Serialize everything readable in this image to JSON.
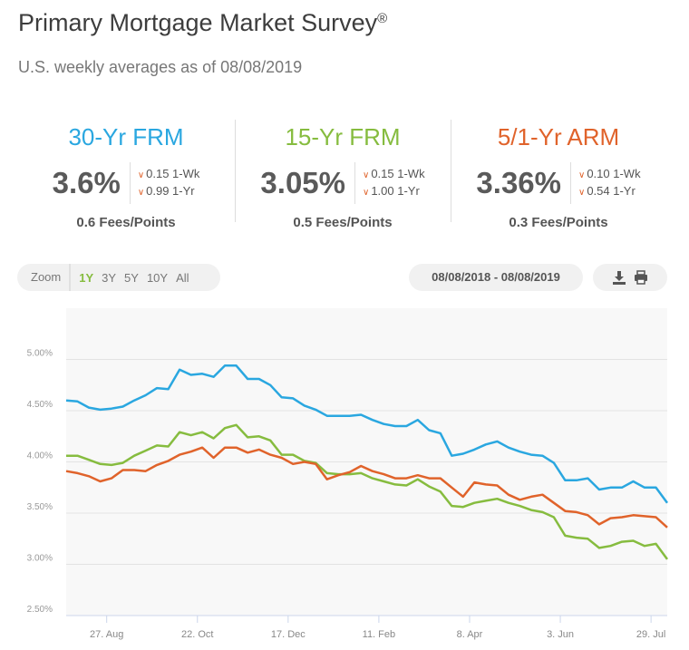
{
  "header": {
    "title": "Primary Mortgage Market Survey",
    "title_mark": "®",
    "subtitle": "U.S. weekly averages as of 08/08/2019"
  },
  "rates": [
    {
      "name": "30-Yr FRM",
      "rate": "3.6%",
      "wk": "0.15 1-Wk",
      "yr": "0.99 1-Yr",
      "fees": "0.6 Fees/Points",
      "color": "#2aa7e0"
    },
    {
      "name": "15-Yr FRM",
      "rate": "3.05%",
      "wk": "0.15 1-Wk",
      "yr": "1.00 1-Yr",
      "fees": "0.5 Fees/Points",
      "color": "#86bc3f"
    },
    {
      "name": "5/1-Yr ARM",
      "rate": "3.36%",
      "wk": "0.10 1-Wk",
      "yr": "0.54 1-Yr",
      "fees": "0.3 Fees/Points",
      "color": "#e0632b"
    }
  ],
  "controls": {
    "zoom_label": "Zoom",
    "zoom_options": [
      "1Y",
      "3Y",
      "5Y",
      "10Y",
      "All"
    ],
    "active_zoom": "1Y",
    "date_range": "08/08/2018 - 08/08/2019",
    "icons": [
      "download-icon",
      "print-icon"
    ]
  },
  "chart_data": {
    "type": "line",
    "start_date": "2018-08-02",
    "interval_days": 7,
    "ylim": [
      2.5,
      5.5
    ],
    "y_ticks": [
      2.5,
      3.0,
      3.5,
      4.0,
      4.5,
      5.0
    ],
    "y_tick_labels": [
      "2.50%",
      "3.00%",
      "3.50%",
      "4.00%",
      "4.50%",
      "5.00%"
    ],
    "x_ticks": [
      {
        "label": "27. Aug",
        "date": "2018-08-27"
      },
      {
        "label": "22. Oct",
        "date": "2018-10-22"
      },
      {
        "label": "17. Dec",
        "date": "2018-12-17"
      },
      {
        "label": "11. Feb",
        "date": "2019-02-11"
      },
      {
        "label": "8. Apr",
        "date": "2019-04-08"
      },
      {
        "label": "3. Jun",
        "date": "2019-06-03"
      },
      {
        "label": "29. Jul",
        "date": "2019-07-29"
      }
    ],
    "grid": true,
    "series": [
      {
        "name": "30-Yr FRM",
        "color": "#2aa7e0",
        "values": [
          4.6,
          4.59,
          4.53,
          4.51,
          4.52,
          4.54,
          4.6,
          4.65,
          4.72,
          4.71,
          4.9,
          4.85,
          4.86,
          4.83,
          4.94,
          4.94,
          4.81,
          4.81,
          4.75,
          4.63,
          4.62,
          4.55,
          4.51,
          4.45,
          4.45,
          4.45,
          4.46,
          4.41,
          4.37,
          4.35,
          4.35,
          4.41,
          4.31,
          4.28,
          4.06,
          4.08,
          4.12,
          4.17,
          4.2,
          4.14,
          4.1,
          4.07,
          4.06,
          3.99,
          3.82,
          3.82,
          3.84,
          3.73,
          3.75,
          3.75,
          3.81,
          3.75,
          3.75,
          3.6
        ]
      },
      {
        "name": "15-Yr FRM",
        "color": "#86bc3f",
        "values": [
          4.06,
          4.06,
          4.02,
          3.98,
          3.97,
          3.99,
          4.06,
          4.11,
          4.16,
          4.15,
          4.29,
          4.26,
          4.29,
          4.23,
          4.33,
          4.36,
          4.24,
          4.25,
          4.21,
          4.07,
          4.07,
          4.01,
          3.99,
          3.89,
          3.88,
          3.88,
          3.89,
          3.84,
          3.81,
          3.78,
          3.77,
          3.83,
          3.76,
          3.71,
          3.57,
          3.56,
          3.6,
          3.62,
          3.64,
          3.6,
          3.57,
          3.53,
          3.51,
          3.46,
          3.28,
          3.26,
          3.25,
          3.16,
          3.18,
          3.22,
          3.23,
          3.18,
          3.2,
          3.05
        ]
      },
      {
        "name": "5/1-Yr ARM",
        "color": "#e0632b",
        "values": [
          3.91,
          3.89,
          3.86,
          3.81,
          3.84,
          3.92,
          3.92,
          3.91,
          3.97,
          4.01,
          4.07,
          4.1,
          4.14,
          4.04,
          4.14,
          4.14,
          4.09,
          4.12,
          4.07,
          4.04,
          3.98,
          4.0,
          3.98,
          3.83,
          3.87,
          3.9,
          3.96,
          3.91,
          3.88,
          3.84,
          3.84,
          3.87,
          3.84,
          3.84,
          3.75,
          3.66,
          3.8,
          3.78,
          3.77,
          3.68,
          3.63,
          3.66,
          3.68,
          3.6,
          3.52,
          3.51,
          3.48,
          3.39,
          3.45,
          3.46,
          3.48,
          3.47,
          3.46,
          3.36
        ]
      }
    ]
  }
}
